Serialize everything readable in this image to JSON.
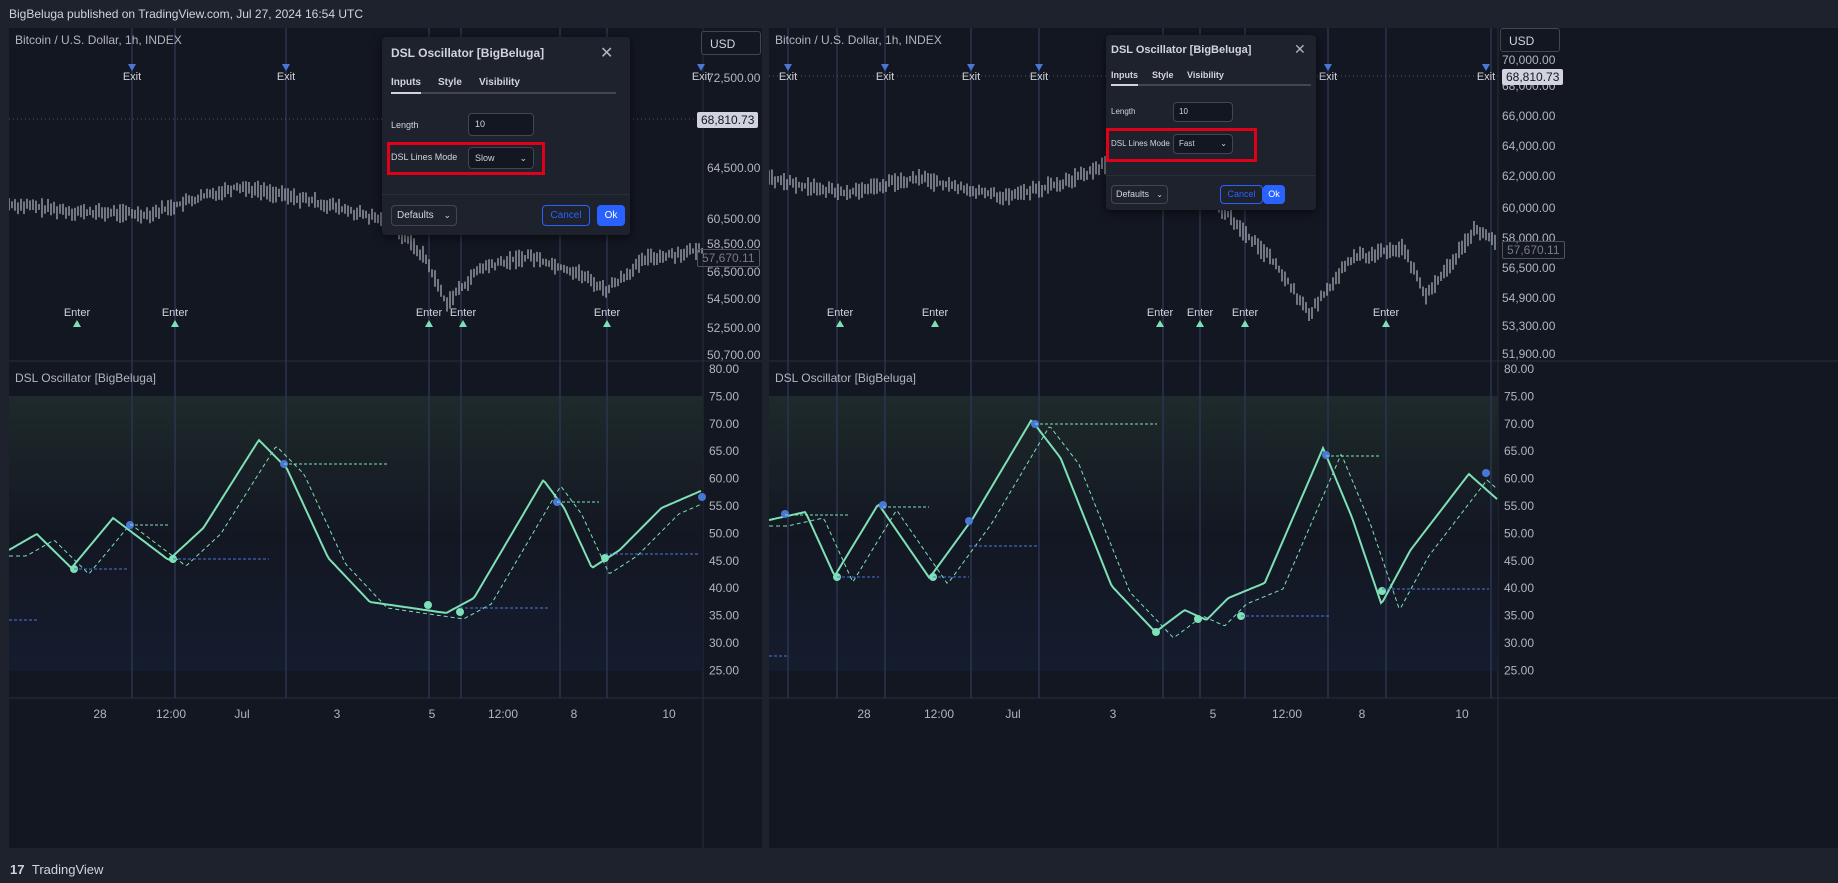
{
  "header": {
    "publish_text": "BigBeluga published on TradingView.com, Jul 27, 2024 16:54 UTC"
  },
  "footer": {
    "brand": "TradingView",
    "logo_glyph": "17"
  },
  "colors": {
    "background": "#131722",
    "price_line": "#d1d4dc",
    "fast_line": "#7ee0b6",
    "slow_line": "#4a76d6",
    "enter_marker": "#7ee0b6",
    "exit_marker": "#4a76d6",
    "vertical_lines": "#2b3450",
    "highlight_box": "#e0001a",
    "ok_button": "#2962ff"
  },
  "panels": [
    {
      "id": "left",
      "symbol_title": "Bitcoin / U.S. Dollar, 1h, INDEX",
      "currency_button": "USD",
      "price_axis": [
        "72,500.00",
        "64,500.00",
        "60,500.00",
        "58,500.00",
        "56,500.00",
        "54,500.00",
        "52,500.00",
        "50,700.00"
      ],
      "price_high_label": "68,810.73",
      "price_last_label": "57,670.11",
      "osc_title": "DSL Oscillator [BigBeluga]",
      "osc_axis": [
        "80.00",
        "75.00",
        "70.00",
        "65.00",
        "60.00",
        "55.00",
        "50.00",
        "45.00",
        "40.00",
        "35.00",
        "30.00",
        "25.00"
      ],
      "time_axis": [
        "28",
        "12:00",
        "Jul",
        "3",
        "5",
        "12:00",
        "8",
        "10"
      ],
      "exit_label": "Exit",
      "enter_label": "Enter",
      "dialog": {
        "title": "DSL Oscillator [BigBeluga]",
        "tabs": [
          "Inputs",
          "Style",
          "Visibility"
        ],
        "length_label": "Length",
        "length_value": "10",
        "mode_label": "DSL Lines Mode",
        "mode_value": "Slow",
        "defaults_label": "Defaults",
        "cancel_label": "Cancel",
        "ok_label": "Ok"
      }
    },
    {
      "id": "right",
      "symbol_title": "Bitcoin / U.S. Dollar, 1h, INDEX",
      "currency_button": "USD",
      "price_axis": [
        "70,000.00",
        "68,000.00",
        "66,000.00",
        "64,000.00",
        "62,000.00",
        "60,000.00",
        "58,000.00",
        "56,500.00",
        "54,900.00",
        "53,300.00",
        "51,900.00"
      ],
      "price_high_label": "68,810.73",
      "price_last_label": "57,670.11",
      "osc_title": "DSL Oscillator [BigBeluga]",
      "osc_axis": [
        "80.00",
        "75.00",
        "70.00",
        "65.00",
        "60.00",
        "55.00",
        "50.00",
        "45.00",
        "40.00",
        "35.00",
        "30.00",
        "25.00"
      ],
      "time_axis": [
        "28",
        "12:00",
        "Jul",
        "3",
        "5",
        "12:00",
        "8",
        "10"
      ],
      "exit_label": "Exit",
      "enter_label": "Enter",
      "dialog": {
        "title": "DSL Oscillator [BigBeluga]",
        "tabs": [
          "Inputs",
          "Style",
          "Visibility"
        ],
        "length_label": "Length",
        "length_value": "10",
        "mode_label": "DSL Lines Mode",
        "mode_value": "Fast",
        "defaults_label": "Defaults",
        "cancel_label": "Cancel",
        "ok_label": "Ok"
      }
    }
  ]
}
